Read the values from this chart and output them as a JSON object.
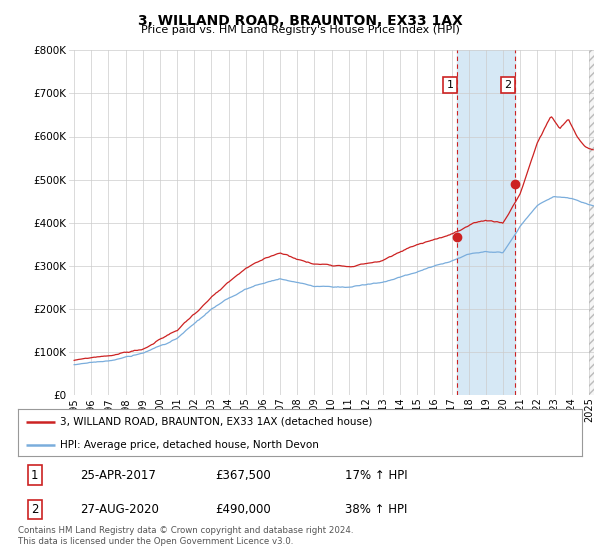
{
  "title": "3, WILLAND ROAD, BRAUNTON, EX33 1AX",
  "subtitle": "Price paid vs. HM Land Registry's House Price Index (HPI)",
  "ylabel_ticks": [
    "£0",
    "£100K",
    "£200K",
    "£300K",
    "£400K",
    "£500K",
    "£600K",
    "£700K",
    "£800K"
  ],
  "ytick_values": [
    0,
    100000,
    200000,
    300000,
    400000,
    500000,
    600000,
    700000,
    800000
  ],
  "ylim": [
    0,
    800000
  ],
  "xlim_start": 1994.7,
  "xlim_end": 2025.3,
  "hpi_color": "#7aaddc",
  "price_color": "#cc2222",
  "marker1_x": 2017.3,
  "marker1_y": 367500,
  "marker2_x": 2020.67,
  "marker2_y": 490000,
  "vline1_x": 2017.3,
  "vline2_x": 2020.67,
  "legend_label1": "3, WILLAND ROAD, BRAUNTON, EX33 1AX (detached house)",
  "legend_label2": "HPI: Average price, detached house, North Devon",
  "table_row1": [
    "1",
    "25-APR-2017",
    "£367,500",
    "17% ↑ HPI"
  ],
  "table_row2": [
    "2",
    "27-AUG-2020",
    "£490,000",
    "38% ↑ HPI"
  ],
  "footnote": "Contains HM Land Registry data © Crown copyright and database right 2024.\nThis data is licensed under the Open Government Licence v3.0.",
  "bg_color": "#ffffff",
  "grid_color": "#cccccc",
  "highlight_bg": "#d6e8f5",
  "hatch_start": 2025.0
}
